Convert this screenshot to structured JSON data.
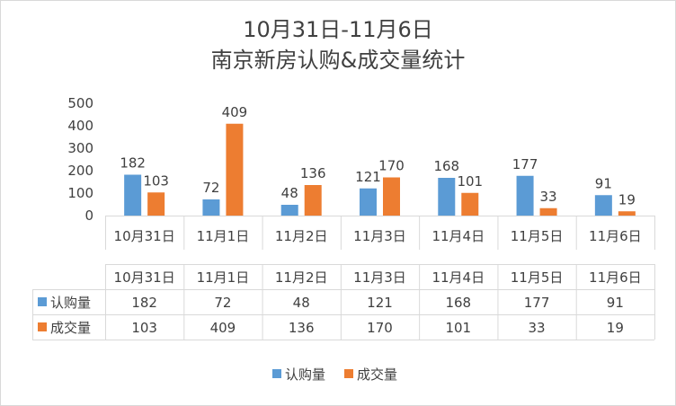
{
  "chart_data": {
    "type": "bar",
    "title_line1": "10月31日-11月6日",
    "title_line2": "南京新房认购&成交量统计",
    "categories": [
      "10月31日",
      "11月1日",
      "11月2日",
      "11月3日",
      "11月4日",
      "11月5日",
      "11月6日"
    ],
    "series": [
      {
        "name": "认购量",
        "color": "#5b9bd5",
        "values": [
          182,
          72,
          48,
          121,
          168,
          177,
          91
        ]
      },
      {
        "name": "成交量",
        "color": "#ed7d31",
        "values": [
          103,
          409,
          136,
          170,
          101,
          33,
          19
        ]
      }
    ],
    "ylim": [
      0,
      500
    ],
    "yticks": [
      0,
      100,
      200,
      300,
      400,
      500
    ],
    "grid": false,
    "legend": "bottom",
    "data_table": true
  }
}
